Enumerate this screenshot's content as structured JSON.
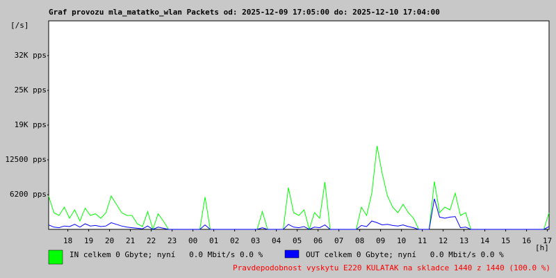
{
  "chart_data": {
    "type": "line",
    "title": "Graf provozu mla_matatko_wlan Packets od: 2025-12-09 17:05:00 do: 2025-12-10 17:04:00",
    "y_label": "[/s]",
    "x_label": "[h]",
    "xlim": [
      0,
      24
    ],
    "xticks": [
      {
        "value": 0.92,
        "label": "18"
      },
      {
        "value": 1.92,
        "label": "19"
      },
      {
        "value": 2.92,
        "label": "20"
      },
      {
        "value": 3.92,
        "label": "21"
      },
      {
        "value": 4.92,
        "label": "22"
      },
      {
        "value": 5.92,
        "label": "23"
      },
      {
        "value": 6.92,
        "label": "00"
      },
      {
        "value": 7.92,
        "label": "01"
      },
      {
        "value": 8.92,
        "label": "02"
      },
      {
        "value": 9.92,
        "label": "03"
      },
      {
        "value": 10.92,
        "label": "04"
      },
      {
        "value": 11.92,
        "label": "05"
      },
      {
        "value": 12.92,
        "label": "06"
      },
      {
        "value": 13.92,
        "label": "07"
      },
      {
        "value": 14.92,
        "label": "08"
      },
      {
        "value": 15.92,
        "label": "09"
      },
      {
        "value": 16.92,
        "label": "10"
      },
      {
        "value": 17.92,
        "label": "11"
      },
      {
        "value": 18.92,
        "label": "12"
      },
      {
        "value": 19.92,
        "label": "13"
      },
      {
        "value": 20.92,
        "label": "14"
      },
      {
        "value": 21.92,
        "label": "15"
      },
      {
        "value": 22.92,
        "label": "16"
      },
      {
        "value": 23.92,
        "label": "17"
      }
    ],
    "ylim": [
      0,
      37500
    ],
    "yticks": [
      {
        "value": 6250,
        "label": "6200 pps"
      },
      {
        "value": 12500,
        "label": "12500 pps"
      },
      {
        "value": 18750,
        "label": "19K pps"
      },
      {
        "value": 25000,
        "label": "25K pps"
      },
      {
        "value": 31250,
        "label": "32K pps"
      }
    ],
    "x": [
      0,
      0.25,
      0.5,
      0.75,
      1,
      1.25,
      1.5,
      1.75,
      2,
      2.25,
      2.5,
      2.75,
      3,
      3.25,
      3.5,
      3.75,
      4,
      4.25,
      4.5,
      4.75,
      5,
      5.25,
      5.5,
      5.75,
      6,
      6.25,
      6.5,
      6.75,
      7,
      7.25,
      7.5,
      7.75,
      8,
      8.25,
      8.5,
      8.75,
      9,
      9.25,
      9.5,
      9.75,
      10,
      10.25,
      10.5,
      10.75,
      11,
      11.25,
      11.5,
      11.75,
      12,
      12.25,
      12.5,
      12.75,
      13,
      13.25,
      13.5,
      13.75,
      14,
      14.25,
      14.5,
      14.75,
      15,
      15.25,
      15.5,
      15.75,
      16,
      16.25,
      16.5,
      16.75,
      17,
      17.25,
      17.5,
      17.75,
      18,
      18.25,
      18.5,
      18.75,
      19,
      19.25,
      19.5,
      19.75,
      20,
      20.25,
      20.5,
      20.75,
      21,
      21.25,
      21.5,
      21.75,
      22,
      22.25,
      22.5,
      22.75,
      23,
      23.25,
      23.5,
      23.75,
      24
    ],
    "series": [
      {
        "name": "IN celkem 0 Gbyte; nyní   0.0 Mbit/s 0.0 %",
        "color": "#00ff00",
        "values": [
          6000,
          3000,
          2500,
          4000,
          2000,
          3500,
          1500,
          3800,
          2500,
          2800,
          2000,
          3000,
          6000,
          4500,
          3000,
          2500,
          2500,
          1000,
          500,
          3200,
          0,
          2800,
          1500,
          0,
          0,
          0,
          0,
          0,
          0,
          0,
          5800,
          0,
          0,
          0,
          0,
          0,
          0,
          0,
          0,
          0,
          0,
          3200,
          0,
          0,
          0,
          0,
          7500,
          3000,
          2500,
          3500,
          0,
          3000,
          2000,
          8500,
          0,
          0,
          0,
          0,
          0,
          0,
          4000,
          2500,
          6500,
          15000,
          10000,
          6000,
          4000,
          3000,
          4500,
          3000,
          2000,
          0,
          0,
          0,
          8600,
          3000,
          4000,
          3500,
          6500,
          2500,
          3000,
          0,
          0,
          0,
          0,
          0,
          0,
          0,
          0,
          0,
          0,
          0,
          0,
          0,
          0,
          0,
          3000
        ]
      },
      {
        "name": "OUT celkem 0 Gbyte; nyní   0.0 Mbit/s 0.0 %",
        "color": "#0000ff",
        "values": [
          800,
          400,
          300,
          600,
          500,
          900,
          400,
          1000,
          600,
          700,
          500,
          600,
          1200,
          900,
          600,
          400,
          300,
          200,
          100,
          600,
          0,
          400,
          200,
          0,
          0,
          0,
          0,
          0,
          0,
          0,
          800,
          0,
          0,
          0,
          0,
          0,
          0,
          0,
          0,
          0,
          0,
          300,
          0,
          0,
          0,
          0,
          900,
          400,
          300,
          500,
          0,
          400,
          300,
          800,
          0,
          0,
          0,
          0,
          0,
          0,
          700,
          500,
          1500,
          1200,
          800,
          900,
          700,
          600,
          800,
          500,
          300,
          0,
          0,
          0,
          5500,
          2200,
          2000,
          2200,
          2300,
          300,
          400,
          0,
          0,
          0,
          0,
          0,
          0,
          0,
          0,
          0,
          0,
          0,
          0,
          0,
          0,
          0,
          500
        ]
      }
    ],
    "note": "Pravdepodobnost vyskytu E220 KULATAK na skladce 1440 z 1440 (100.0 %)"
  }
}
